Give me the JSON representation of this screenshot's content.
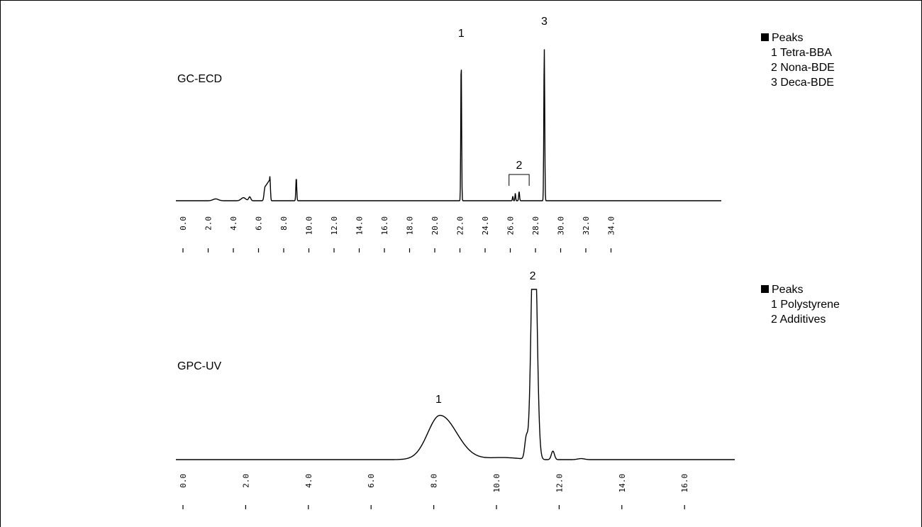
{
  "chart_data": [
    {
      "type": "line",
      "title": "GC-ECD",
      "xlim": [
        0.0,
        35.2
      ],
      "xticks": [
        "0.0",
        "2.0",
        "4.0",
        "6.0",
        "8.0",
        "10.0",
        "12.0",
        "14.0",
        "16.0",
        "18.0",
        "20.0",
        "22.0",
        "24.0",
        "26.0",
        "28.0",
        "30.0",
        "32.0",
        "34.0"
      ],
      "tick_values": [
        0,
        2,
        4,
        6,
        8,
        10,
        12,
        14,
        16,
        18,
        20,
        22,
        24,
        26,
        28,
        30,
        32,
        34
      ],
      "peaks": [
        {
          "x": 6.5,
          "h": 0.08
        },
        {
          "x": 6.9,
          "h": 0.16
        },
        {
          "x": 9.0,
          "h": 0.15
        },
        {
          "x": 22.1,
          "h": 0.93,
          "label": "1"
        },
        {
          "x": 26.2,
          "h": 0.03
        },
        {
          "x": 26.4,
          "h": 0.05
        },
        {
          "x": 26.7,
          "h": 0.06
        },
        {
          "x": 28.7,
          "h": 1.0,
          "label": "3"
        }
      ],
      "bracket": {
        "x_start": 25.9,
        "x_end": 27.5,
        "label": "2"
      },
      "legend": {
        "header": "Peaks",
        "items": [
          "1 Tetra-BBA",
          "2 Nona-BDE",
          "3 Deca-BDE"
        ]
      }
    },
    {
      "type": "line",
      "title": "GPC-UV",
      "xlim": [
        0.0,
        17.8
      ],
      "xticks": [
        "0.0",
        "2.0",
        "4.0",
        "6.0",
        "8.0",
        "10.0",
        "12.0",
        "14.0",
        "16.0"
      ],
      "tick_values": [
        0,
        2,
        4,
        6,
        8,
        10,
        12,
        14,
        16
      ],
      "peaks": [
        {
          "x": 8.2,
          "h": 0.26,
          "label": "1"
        },
        {
          "x": 11.2,
          "h": 1.0,
          "label": "2",
          "truncated": true
        },
        {
          "x": 11.8,
          "h": 0.05
        }
      ],
      "legend": {
        "header": "Peaks",
        "items": [
          "1 Polystyrene",
          "2 Additives"
        ]
      }
    }
  ]
}
